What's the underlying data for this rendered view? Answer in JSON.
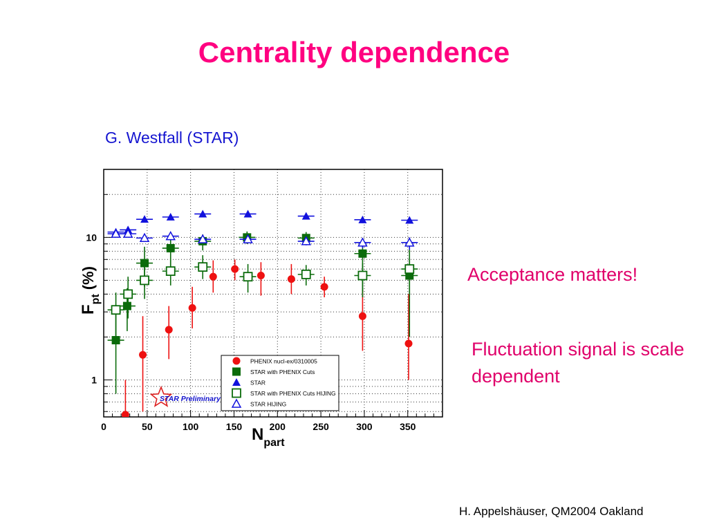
{
  "slide": {
    "title": "Centrality dependence",
    "subtitle": "G. Westfall (STAR)",
    "note1": "Acceptance matters!",
    "note2": "Fluctuation signal is scale dependent",
    "footer": "H. Appelshäuser, QM2004 Oakland"
  },
  "chart_data": {
    "type": "scatter",
    "x_axis": {
      "label": "N",
      "label_sub": "part",
      "range": [
        0,
        390
      ],
      "ticks": [
        0,
        50,
        100,
        150,
        200,
        250,
        300,
        350
      ],
      "tick_labels": [
        "0",
        "50",
        "100",
        "150",
        "200",
        "250",
        "300",
        "350"
      ]
    },
    "y_axis": {
      "label": "F",
      "label_sub": "pt",
      "label_suffix": "(%)",
      "scale": "log",
      "range": [
        0.55,
        30
      ],
      "ticks": [
        1,
        10
      ],
      "tick_labels": [
        "1",
        "10"
      ]
    },
    "grid": true,
    "watermark": "STAR Preliminary",
    "legend_position": "bottom-center",
    "series": [
      {
        "name": "PHENIX nucl-ex/0310005",
        "color": "#ee1111",
        "marker": "circle-filled",
        "points": [
          {
            "x": 25,
            "y": 0.57,
            "ylo": 0.4,
            "yhi": 1.0
          },
          {
            "x": 45,
            "y": 1.5,
            "ylo": 0.6,
            "yhi": 2.8
          },
          {
            "x": 75,
            "y": 2.25,
            "ylo": 1.4,
            "yhi": 3.3
          },
          {
            "x": 102,
            "y": 3.2,
            "ylo": 2.3,
            "yhi": 4.5
          },
          {
            "x": 126,
            "y": 5.3,
            "ylo": 4.1,
            "yhi": 6.9
          },
          {
            "x": 151,
            "y": 6.0,
            "ylo": 5.0,
            "yhi": 7.0
          },
          {
            "x": 181,
            "y": 5.4,
            "ylo": 3.9,
            "yhi": 6.7
          },
          {
            "x": 216,
            "y": 5.1,
            "ylo": 4.0,
            "yhi": 6.5
          },
          {
            "x": 254,
            "y": 4.5,
            "ylo": 3.8,
            "yhi": 5.3
          },
          {
            "x": 298,
            "y": 2.8,
            "ylo": 1.6,
            "yhi": 4.3
          },
          {
            "x": 351,
            "y": 1.8,
            "ylo": 1.0,
            "yhi": 4.0
          }
        ]
      },
      {
        "name": "STAR with PHENIX Cuts",
        "color": "#0b6b0b",
        "marker": "square-filled",
        "points": [
          {
            "x": 14,
            "y": 1.9,
            "ylo": 0.8,
            "yhi": 3.0
          },
          {
            "x": 27,
            "y": 3.3,
            "ylo": 2.2,
            "yhi": 4.4
          },
          {
            "x": 47,
            "y": 6.6,
            "ylo": 4.5,
            "yhi": 8.6
          },
          {
            "x": 77,
            "y": 8.4,
            "ylo": 6.2,
            "yhi": 10.3
          },
          {
            "x": 114,
            "y": 9.4,
            "ylo": 8.1,
            "yhi": 10.5
          },
          {
            "x": 165,
            "y": 10.0,
            "ylo": 9.0,
            "yhi": 11.0
          },
          {
            "x": 233,
            "y": 9.9,
            "ylo": 8.9,
            "yhi": 10.9
          },
          {
            "x": 298,
            "y": 7.7,
            "ylo": 3.8,
            "yhi": 9.3
          },
          {
            "x": 352,
            "y": 5.4,
            "ylo": 2.0,
            "yhi": 6.9
          }
        ]
      },
      {
        "name": "STAR",
        "color": "#1111dd",
        "marker": "triangle-filled",
        "points": [
          {
            "x": 14,
            "y": 10.9,
            "ylo": 10.3,
            "yhi": 11.5
          },
          {
            "x": 28,
            "y": 11.3,
            "ylo": 10.7,
            "yhi": 11.9
          },
          {
            "x": 47,
            "y": 13.4,
            "ylo": 13.0,
            "yhi": 13.8
          },
          {
            "x": 77,
            "y": 13.9,
            "ylo": 13.5,
            "yhi": 14.3
          },
          {
            "x": 114,
            "y": 14.6,
            "ylo": 14.2,
            "yhi": 15.0
          },
          {
            "x": 166,
            "y": 14.6,
            "ylo": 14.2,
            "yhi": 15.0
          },
          {
            "x": 233,
            "y": 14.1,
            "ylo": 13.7,
            "yhi": 14.5
          },
          {
            "x": 298,
            "y": 13.3,
            "ylo": 12.6,
            "yhi": 14.0
          },
          {
            "x": 352,
            "y": 13.2,
            "ylo": 12.5,
            "yhi": 13.9
          }
        ]
      },
      {
        "name": "STAR with PHENIX Cuts HIJING",
        "color": "#0b6b0b",
        "marker": "square-open",
        "points": [
          {
            "x": 14,
            "y": 3.1,
            "ylo": 1.8,
            "yhi": 4.1
          },
          {
            "x": 28,
            "y": 4.0,
            "ylo": 2.7,
            "yhi": 5.3
          },
          {
            "x": 47,
            "y": 5.0,
            "ylo": 3.7,
            "yhi": 6.2
          },
          {
            "x": 77,
            "y": 5.8,
            "ylo": 4.6,
            "yhi": 7.1
          },
          {
            "x": 114,
            "y": 6.2,
            "ylo": 5.1,
            "yhi": 7.5
          },
          {
            "x": 166,
            "y": 5.3,
            "ylo": 4.1,
            "yhi": 6.5
          },
          {
            "x": 233,
            "y": 5.5,
            "ylo": 4.6,
            "yhi": 6.4
          },
          {
            "x": 298,
            "y": 5.4,
            "ylo": 4.2,
            "yhi": 6.6
          },
          {
            "x": 352,
            "y": 6.0,
            "ylo": 4.0,
            "yhi": 8.2
          }
        ]
      },
      {
        "name": "STAR HIJING",
        "color": "#1111dd",
        "marker": "triangle-open",
        "points": [
          {
            "x": 14,
            "y": 10.6,
            "ylo": 10.0,
            "yhi": 11.2
          },
          {
            "x": 28,
            "y": 10.6,
            "ylo": 10.0,
            "yhi": 11.2
          },
          {
            "x": 47,
            "y": 9.9,
            "ylo": 9.3,
            "yhi": 10.4
          },
          {
            "x": 77,
            "y": 10.2,
            "ylo": 9.7,
            "yhi": 10.7
          },
          {
            "x": 114,
            "y": 9.7,
            "ylo": 9.2,
            "yhi": 10.2
          },
          {
            "x": 166,
            "y": 9.7,
            "ylo": 9.1,
            "yhi": 10.3
          },
          {
            "x": 233,
            "y": 9.4,
            "ylo": 8.8,
            "yhi": 10.0
          },
          {
            "x": 298,
            "y": 9.2,
            "ylo": 8.4,
            "yhi": 9.9
          },
          {
            "x": 352,
            "y": 9.2,
            "ylo": 8.2,
            "yhi": 10.0
          }
        ]
      }
    ]
  }
}
